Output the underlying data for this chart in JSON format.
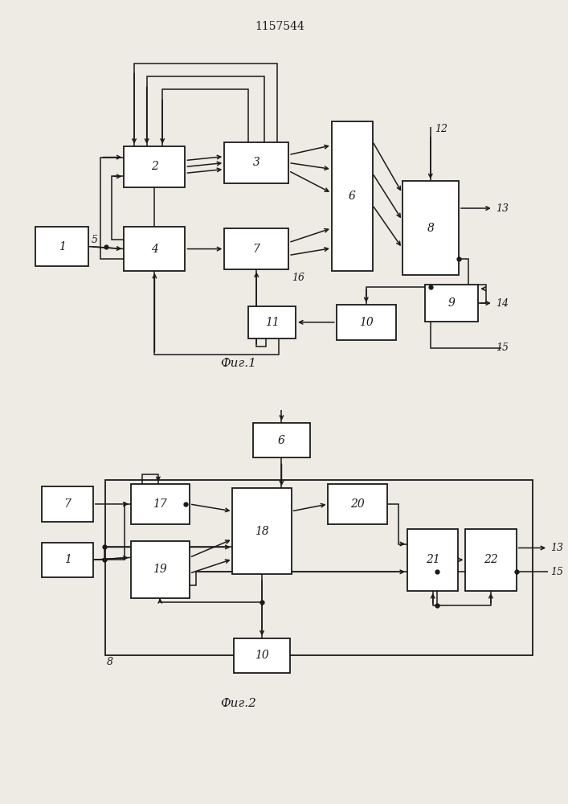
{
  "title": "1157544",
  "fig1_caption": "Фиг.1",
  "fig2_caption": "Фиг.2",
  "bg_color": "#eeebe4",
  "box_color": "#ffffff",
  "line_color": "#1a1a1a"
}
